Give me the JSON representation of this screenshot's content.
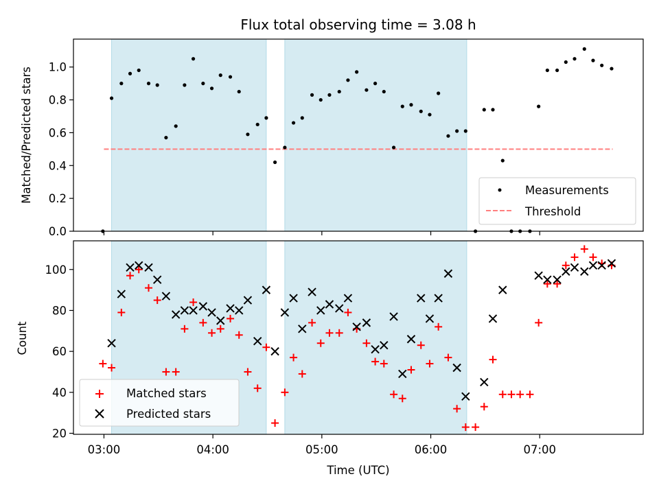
{
  "chart_data": [
    {
      "type": "scatter",
      "title": "Flux total observing time = 3.08 h",
      "ylabel": "Matched/Predicted stars",
      "xlabel": "",
      "x_unit": "hours UTC",
      "xlim": [
        2.72,
        7.95
      ],
      "ylim": [
        0,
        1.17
      ],
      "yticks": [
        0.0,
        0.2,
        0.4,
        0.6,
        0.8,
        1.0
      ],
      "ytick_labels": [
        "0.0",
        "0.2",
        "0.4",
        "0.6",
        "0.8",
        "1.0"
      ],
      "shaded_intervals": [
        [
          3.07,
          4.49
        ],
        [
          4.66,
          6.33
        ]
      ],
      "shade_color": "#add8e6",
      "threshold": {
        "name": "Threshold",
        "value": 0.5,
        "x_range": [
          3.0,
          7.67
        ],
        "color": "#ff7f7f"
      },
      "series": [
        {
          "name": "Measurements",
          "color": "#000000",
          "points": [
            [
              2.99,
              0.0
            ],
            [
              3.07,
              0.81
            ],
            [
              3.16,
              0.9
            ],
            [
              3.24,
              0.96
            ],
            [
              3.32,
              0.98
            ],
            [
              3.41,
              0.9
            ],
            [
              3.49,
              0.89
            ],
            [
              3.57,
              0.57
            ],
            [
              3.66,
              0.64
            ],
            [
              3.74,
              0.89
            ],
            [
              3.82,
              1.05
            ],
            [
              3.91,
              0.9
            ],
            [
              3.99,
              0.87
            ],
            [
              4.07,
              0.95
            ],
            [
              4.16,
              0.94
            ],
            [
              4.24,
              0.85
            ],
            [
              4.32,
              0.59
            ],
            [
              4.41,
              0.65
            ],
            [
              4.49,
              0.69
            ],
            [
              4.57,
              0.42
            ],
            [
              4.66,
              0.51
            ],
            [
              4.74,
              0.66
            ],
            [
              4.82,
              0.69
            ],
            [
              4.91,
              0.83
            ],
            [
              4.99,
              0.8
            ],
            [
              5.07,
              0.83
            ],
            [
              5.16,
              0.85
            ],
            [
              5.24,
              0.92
            ],
            [
              5.32,
              0.97
            ],
            [
              5.41,
              0.86
            ],
            [
              5.49,
              0.9
            ],
            [
              5.57,
              0.85
            ],
            [
              5.66,
              0.51
            ],
            [
              5.74,
              0.76
            ],
            [
              5.82,
              0.77
            ],
            [
              5.91,
              0.73
            ],
            [
              5.99,
              0.71
            ],
            [
              6.07,
              0.84
            ],
            [
              6.16,
              0.58
            ],
            [
              6.24,
              0.61
            ],
            [
              6.32,
              0.61
            ],
            [
              6.41,
              0.0
            ],
            [
              6.49,
              0.74
            ],
            [
              6.57,
              0.74
            ],
            [
              6.66,
              0.43
            ],
            [
              6.74,
              0.0
            ],
            [
              6.82,
              0.0
            ],
            [
              6.91,
              0.0
            ],
            [
              6.99,
              0.76
            ],
            [
              7.07,
              0.98
            ],
            [
              7.16,
              0.98
            ],
            [
              7.24,
              1.03
            ],
            [
              7.32,
              1.05
            ],
            [
              7.41,
              1.11
            ],
            [
              7.49,
              1.04
            ],
            [
              7.57,
              1.01
            ],
            [
              7.66,
              0.99
            ]
          ]
        }
      ],
      "legend": {
        "position": "lower-right",
        "entries": [
          "Measurements",
          "Threshold"
        ]
      }
    },
    {
      "type": "scatter",
      "title": "",
      "ylabel": "Count",
      "xlabel": "Time (UTC)",
      "x_unit": "hours UTC",
      "xlim": [
        2.72,
        7.95
      ],
      "ylim": [
        19.5,
        114
      ],
      "xticks": [
        3,
        4,
        5,
        6,
        7
      ],
      "xtick_labels": [
        "03:00",
        "04:00",
        "05:00",
        "06:00",
        "07:00"
      ],
      "yticks": [
        20,
        40,
        60,
        80,
        100
      ],
      "ytick_labels": [
        "20",
        "40",
        "60",
        "80",
        "100"
      ],
      "shaded_intervals": [
        [
          3.07,
          4.49
        ],
        [
          4.66,
          6.33
        ]
      ],
      "shade_color": "#add8e6",
      "series": [
        {
          "name": "Matched stars",
          "marker": "plus",
          "color": "#ff0000",
          "points": [
            [
              2.99,
              54
            ],
            [
              3.07,
              52
            ],
            [
              3.16,
              79
            ],
            [
              3.24,
              97
            ],
            [
              3.32,
              100
            ],
            [
              3.41,
              91
            ],
            [
              3.49,
              85
            ],
            [
              3.57,
              50
            ],
            [
              3.66,
              50
            ],
            [
              3.74,
              71
            ],
            [
              3.82,
              84
            ],
            [
              3.91,
              74
            ],
            [
              3.99,
              69
            ],
            [
              4.07,
              71
            ],
            [
              4.16,
              76
            ],
            [
              4.24,
              68
            ],
            [
              4.32,
              50
            ],
            [
              4.41,
              42
            ],
            [
              4.49,
              62
            ],
            [
              4.57,
              25
            ],
            [
              4.66,
              40
            ],
            [
              4.74,
              57
            ],
            [
              4.82,
              49
            ],
            [
              4.91,
              74
            ],
            [
              4.99,
              64
            ],
            [
              5.07,
              69
            ],
            [
              5.16,
              69
            ],
            [
              5.24,
              79
            ],
            [
              5.32,
              71
            ],
            [
              5.41,
              64
            ],
            [
              5.49,
              55
            ],
            [
              5.57,
              54
            ],
            [
              5.66,
              39
            ],
            [
              5.74,
              37
            ],
            [
              5.82,
              51
            ],
            [
              5.91,
              63
            ],
            [
              5.99,
              54
            ],
            [
              6.07,
              72
            ],
            [
              6.16,
              57
            ],
            [
              6.24,
              32
            ],
            [
              6.32,
              23
            ],
            [
              6.41,
              23
            ],
            [
              6.49,
              33
            ],
            [
              6.57,
              56
            ],
            [
              6.66,
              39
            ],
            [
              6.74,
              39
            ],
            [
              6.82,
              39
            ],
            [
              6.91,
              39
            ],
            [
              6.99,
              74
            ],
            [
              7.07,
              93
            ],
            [
              7.16,
              93
            ],
            [
              7.24,
              102
            ],
            [
              7.32,
              106
            ],
            [
              7.41,
              110
            ],
            [
              7.49,
              106
            ],
            [
              7.57,
              103
            ],
            [
              7.66,
              102
            ]
          ]
        },
        {
          "name": "Predicted stars",
          "marker": "x",
          "color": "#000000",
          "points": [
            [
              3.07,
              64
            ],
            [
              3.16,
              88
            ],
            [
              3.24,
              101
            ],
            [
              3.32,
              102
            ],
            [
              3.41,
              101
            ],
            [
              3.49,
              95
            ],
            [
              3.57,
              87
            ],
            [
              3.66,
              78
            ],
            [
              3.74,
              80
            ],
            [
              3.82,
              80
            ],
            [
              3.91,
              82
            ],
            [
              3.99,
              79
            ],
            [
              4.07,
              75
            ],
            [
              4.16,
              81
            ],
            [
              4.24,
              80
            ],
            [
              4.32,
              85
            ],
            [
              4.41,
              65
            ],
            [
              4.49,
              90
            ],
            [
              4.57,
              60
            ],
            [
              4.66,
              79
            ],
            [
              4.74,
              86
            ],
            [
              4.82,
              71
            ],
            [
              4.91,
              89
            ],
            [
              4.99,
              80
            ],
            [
              5.07,
              83
            ],
            [
              5.16,
              81
            ],
            [
              5.24,
              86
            ],
            [
              5.32,
              72
            ],
            [
              5.41,
              74
            ],
            [
              5.49,
              61
            ],
            [
              5.57,
              63
            ],
            [
              5.66,
              77
            ],
            [
              5.74,
              49
            ],
            [
              5.82,
              66
            ],
            [
              5.91,
              86
            ],
            [
              5.99,
              76
            ],
            [
              6.07,
              86
            ],
            [
              6.16,
              98
            ],
            [
              6.24,
              52
            ],
            [
              6.32,
              38
            ],
            [
              6.49,
              45
            ],
            [
              6.57,
              76
            ],
            [
              6.66,
              90
            ],
            [
              6.99,
              97
            ],
            [
              7.07,
              95
            ],
            [
              7.16,
              95
            ],
            [
              7.24,
              99
            ],
            [
              7.32,
              101
            ],
            [
              7.41,
              99
            ],
            [
              7.49,
              102
            ],
            [
              7.57,
              102
            ],
            [
              7.66,
              103
            ]
          ]
        }
      ],
      "legend": {
        "position": "lower-left",
        "entries": [
          "Matched stars",
          "Predicted stars"
        ]
      }
    }
  ]
}
